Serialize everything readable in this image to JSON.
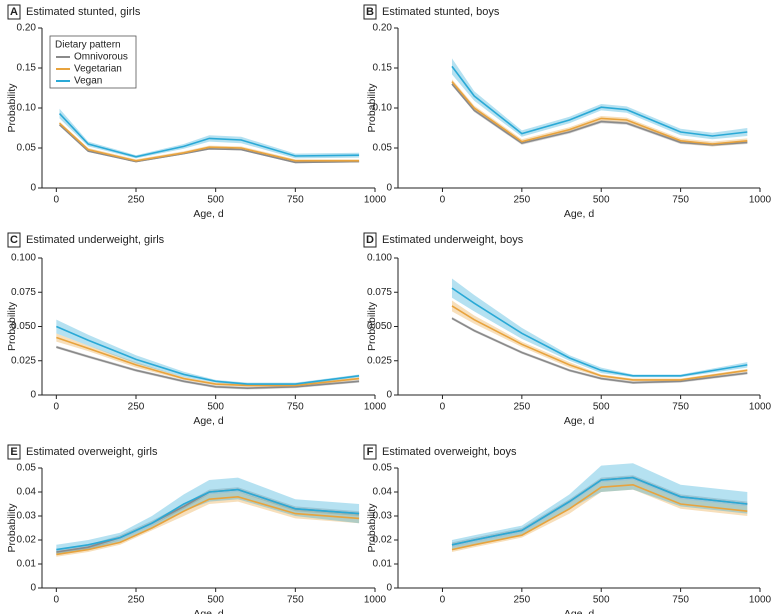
{
  "chart_data": [
    {
      "type": "line",
      "label": "A",
      "title": "Estimated stunted, girls",
      "x_label": "Age, d",
      "y_label": "Probability",
      "legend_title": "Dietary pattern",
      "legend": "upper left",
      "x": [
        10,
        100,
        250,
        400,
        480,
        580,
        750,
        950
      ],
      "xlim": [
        -45,
        1000
      ],
      "xticks": [
        0,
        250,
        500,
        750,
        1000
      ],
      "ylim": [
        0,
        0.2
      ],
      "yticks": [
        0,
        0.05,
        {
          "value": 0.1,
          "label": "0.10"
        },
        0.15,
        {
          "value": 0.2,
          "label": "0.20"
        }
      ],
      "series": [
        {
          "name": "Omnivorous",
          "color": "#8a8a8a",
          "values": [
            0.079,
            0.046,
            0.033,
            0.043,
            0.049,
            0.048,
            0.032,
            0.033
          ],
          "lower": [
            0.078,
            0.045,
            0.032,
            0.042,
            0.048,
            0.047,
            0.031,
            0.032
          ],
          "upper": [
            0.08,
            0.047,
            0.034,
            0.044,
            0.05,
            0.049,
            0.033,
            0.034
          ]
        },
        {
          "name": "Vegetarian",
          "color": "#e8a33d",
          "values": [
            0.081,
            0.048,
            0.034,
            0.044,
            0.051,
            0.05,
            0.034,
            0.034
          ],
          "lower": [
            0.079,
            0.046,
            0.032,
            0.042,
            0.049,
            0.048,
            0.032,
            0.032
          ],
          "upper": [
            0.083,
            0.05,
            0.036,
            0.046,
            0.053,
            0.052,
            0.036,
            0.036
          ]
        },
        {
          "name": "Vegan",
          "color": "#2aa9d6",
          "values": [
            0.093,
            0.055,
            0.039,
            0.052,
            0.062,
            0.06,
            0.04,
            0.041
          ],
          "lower": [
            0.087,
            0.052,
            0.037,
            0.049,
            0.058,
            0.056,
            0.037,
            0.038
          ],
          "upper": [
            0.099,
            0.058,
            0.041,
            0.055,
            0.066,
            0.064,
            0.043,
            0.044
          ]
        }
      ]
    },
    {
      "type": "line",
      "label": "B",
      "title": "Estimated stunted, boys",
      "x_label": "Age, d",
      "y_label": "Probability",
      "x": [
        30,
        100,
        250,
        400,
        500,
        580,
        750,
        850,
        960
      ],
      "xlim": [
        -140,
        1000
      ],
      "xticks": [
        0,
        250,
        500,
        750,
        1000
      ],
      "ylim": [
        0,
        0.2
      ],
      "yticks": [
        0,
        0.05,
        {
          "value": 0.1,
          "label": "0.10"
        },
        0.15,
        {
          "value": 0.2,
          "label": "0.20"
        }
      ],
      "series": [
        {
          "name": "Omnivorous",
          "color": "#8a8a8a",
          "values": [
            0.13,
            0.097,
            0.056,
            0.07,
            0.083,
            0.081,
            0.057,
            0.054,
            0.057
          ],
          "lower": [
            0.128,
            0.095,
            0.054,
            0.068,
            0.081,
            0.079,
            0.055,
            0.052,
            0.055
          ],
          "upper": [
            0.132,
            0.099,
            0.058,
            0.072,
            0.085,
            0.083,
            0.059,
            0.056,
            0.059
          ]
        },
        {
          "name": "Vegetarian",
          "color": "#e8a33d",
          "values": [
            0.133,
            0.1,
            0.058,
            0.073,
            0.087,
            0.085,
            0.059,
            0.055,
            0.059
          ],
          "lower": [
            0.13,
            0.097,
            0.055,
            0.07,
            0.084,
            0.082,
            0.056,
            0.052,
            0.056
          ],
          "upper": [
            0.136,
            0.103,
            0.061,
            0.076,
            0.09,
            0.088,
            0.062,
            0.058,
            0.062
          ]
        },
        {
          "name": "Vegan",
          "color": "#2aa9d6",
          "values": [
            0.152,
            0.115,
            0.068,
            0.085,
            0.101,
            0.098,
            0.07,
            0.065,
            0.07
          ],
          "lower": [
            0.142,
            0.109,
            0.064,
            0.081,
            0.097,
            0.094,
            0.066,
            0.061,
            0.065
          ],
          "upper": [
            0.162,
            0.121,
            0.072,
            0.089,
            0.105,
            0.102,
            0.074,
            0.069,
            0.075
          ]
        }
      ]
    },
    {
      "type": "line",
      "label": "C",
      "title": "Estimated underweight, girls",
      "x_label": "Age, d",
      "y_label": "Probability",
      "x": [
        0,
        100,
        250,
        400,
        500,
        600,
        750,
        950
      ],
      "xlim": [
        -45,
        1000
      ],
      "xticks": [
        0,
        250,
        500,
        750,
        1000
      ],
      "ylim": [
        0,
        0.1
      ],
      "yticks": [
        0,
        0.025,
        {
          "value": 0.05,
          "label": "0.050"
        },
        0.075,
        {
          "value": 0.1,
          "label": "0.100"
        }
      ],
      "series": [
        {
          "name": "Omnivorous",
          "color": "#8a8a8a",
          "values": [
            0.035,
            0.028,
            0.018,
            0.01,
            0.006,
            0.005,
            0.006,
            0.01
          ],
          "lower": [
            0.034,
            0.027,
            0.017,
            0.009,
            0.005,
            0.004,
            0.005,
            0.009
          ],
          "upper": [
            0.036,
            0.029,
            0.019,
            0.011,
            0.007,
            0.006,
            0.007,
            0.011
          ]
        },
        {
          "name": "Vegetarian",
          "color": "#e8a33d",
          "values": [
            0.042,
            0.034,
            0.022,
            0.012,
            0.008,
            0.007,
            0.007,
            0.012
          ],
          "lower": [
            0.039,
            0.032,
            0.02,
            0.011,
            0.007,
            0.006,
            0.006,
            0.011
          ],
          "upper": [
            0.045,
            0.036,
            0.024,
            0.013,
            0.009,
            0.008,
            0.008,
            0.013
          ]
        },
        {
          "name": "Vegan",
          "color": "#2aa9d6",
          "values": [
            0.05,
            0.04,
            0.026,
            0.015,
            0.01,
            0.008,
            0.008,
            0.014
          ],
          "lower": [
            0.045,
            0.036,
            0.023,
            0.013,
            0.009,
            0.007,
            0.007,
            0.013
          ],
          "upper": [
            0.055,
            0.044,
            0.029,
            0.017,
            0.011,
            0.009,
            0.009,
            0.015
          ]
        }
      ]
    },
    {
      "type": "line",
      "label": "D",
      "title": "Estimated underweight, boys",
      "x_label": "Age, d",
      "y_label": "Probability",
      "x": [
        30,
        100,
        250,
        400,
        500,
        600,
        750,
        960
      ],
      "xlim": [
        -140,
        1000
      ],
      "xticks": [
        0,
        250,
        500,
        750,
        1000
      ],
      "ylim": [
        0,
        0.1
      ],
      "yticks": [
        0,
        0.025,
        {
          "value": 0.05,
          "label": "0.050"
        },
        0.075,
        {
          "value": 0.1,
          "label": "0.100"
        }
      ],
      "series": [
        {
          "name": "Omnivorous",
          "color": "#8a8a8a",
          "values": [
            0.056,
            0.047,
            0.031,
            0.018,
            0.012,
            0.009,
            0.01,
            0.016
          ],
          "lower": [
            0.055,
            0.046,
            0.03,
            0.017,
            0.011,
            0.008,
            0.009,
            0.015
          ],
          "upper": [
            0.057,
            0.048,
            0.032,
            0.019,
            0.013,
            0.01,
            0.011,
            0.017
          ]
        },
        {
          "name": "Vegetarian",
          "color": "#e8a33d",
          "values": [
            0.065,
            0.055,
            0.037,
            0.022,
            0.014,
            0.011,
            0.011,
            0.018
          ],
          "lower": [
            0.061,
            0.052,
            0.035,
            0.02,
            0.013,
            0.01,
            0.01,
            0.017
          ],
          "upper": [
            0.069,
            0.058,
            0.039,
            0.024,
            0.015,
            0.012,
            0.012,
            0.019
          ]
        },
        {
          "name": "Vegan",
          "color": "#2aa9d6",
          "values": [
            0.078,
            0.067,
            0.045,
            0.027,
            0.018,
            0.014,
            0.014,
            0.022
          ],
          "lower": [
            0.071,
            0.061,
            0.041,
            0.025,
            0.016,
            0.013,
            0.013,
            0.02
          ],
          "upper": [
            0.085,
            0.073,
            0.049,
            0.029,
            0.02,
            0.015,
            0.015,
            0.024
          ]
        }
      ]
    },
    {
      "type": "line",
      "label": "E",
      "title": "Estimated overweight, girls",
      "x_label": "Age, d",
      "y_label": "Probability",
      "x": [
        0,
        100,
        200,
        300,
        400,
        480,
        570,
        750,
        950
      ],
      "xlim": [
        -45,
        1000
      ],
      "xticks": [
        0,
        250,
        500,
        750,
        1000
      ],
      "ylim": [
        0,
        0.05
      ],
      "yticks": [
        0,
        0.01,
        0.02,
        0.03,
        0.04,
        0.05
      ],
      "series": [
        {
          "name": "Omnivorous",
          "color": "#8a8a8a",
          "values": [
            0.015,
            0.017,
            0.021,
            0.027,
            0.034,
            0.04,
            0.041,
            0.033,
            0.031
          ],
          "lower": [
            0.014,
            0.016,
            0.02,
            0.026,
            0.033,
            0.039,
            0.04,
            0.032,
            0.03
          ],
          "upper": [
            0.016,
            0.018,
            0.022,
            0.028,
            0.035,
            0.041,
            0.042,
            0.034,
            0.032
          ]
        },
        {
          "name": "Vegetarian",
          "color": "#e8a33d",
          "values": [
            0.014,
            0.016,
            0.019,
            0.025,
            0.032,
            0.037,
            0.038,
            0.031,
            0.029
          ],
          "lower": [
            0.013,
            0.015,
            0.018,
            0.024,
            0.03,
            0.035,
            0.036,
            0.029,
            0.027
          ],
          "upper": [
            0.015,
            0.017,
            0.02,
            0.026,
            0.034,
            0.039,
            0.04,
            0.033,
            0.031
          ]
        },
        {
          "name": "Vegan",
          "color": "#2aa9d6",
          "values": [
            0.016,
            0.018,
            0.021,
            0.027,
            0.035,
            0.04,
            0.041,
            0.033,
            0.031
          ],
          "lower": [
            0.014,
            0.016,
            0.019,
            0.025,
            0.032,
            0.036,
            0.037,
            0.03,
            0.027
          ],
          "upper": [
            0.018,
            0.02,
            0.023,
            0.03,
            0.039,
            0.045,
            0.046,
            0.037,
            0.035
          ]
        }
      ]
    },
    {
      "type": "line",
      "label": "F",
      "title": "Estimated overweight, boys",
      "x_label": "Age, d",
      "y_label": "Probability",
      "x": [
        30,
        100,
        250,
        400,
        500,
        600,
        750,
        960
      ],
      "xlim": [
        -140,
        1000
      ],
      "xticks": [
        0,
        250,
        500,
        750,
        1000
      ],
      "ylim": [
        0,
        0.05
      ],
      "yticks": [
        0,
        0.01,
        0.02,
        0.03,
        0.04,
        0.05
      ],
      "series": [
        {
          "name": "Omnivorous",
          "color": "#8a8a8a",
          "values": [
            0.018,
            0.02,
            0.024,
            0.036,
            0.045,
            0.046,
            0.038,
            0.035
          ],
          "lower": [
            0.017,
            0.019,
            0.023,
            0.035,
            0.044,
            0.045,
            0.037,
            0.034
          ],
          "upper": [
            0.019,
            0.021,
            0.025,
            0.037,
            0.046,
            0.047,
            0.039,
            0.036
          ]
        },
        {
          "name": "Vegetarian",
          "color": "#e8a33d",
          "values": [
            0.016,
            0.018,
            0.022,
            0.033,
            0.042,
            0.043,
            0.035,
            0.032
          ],
          "lower": [
            0.015,
            0.017,
            0.021,
            0.031,
            0.04,
            0.041,
            0.033,
            0.03
          ],
          "upper": [
            0.017,
            0.019,
            0.023,
            0.035,
            0.044,
            0.045,
            0.037,
            0.034
          ]
        },
        {
          "name": "Vegan",
          "color": "#2aa9d6",
          "values": [
            0.018,
            0.02,
            0.024,
            0.036,
            0.045,
            0.046,
            0.038,
            0.035
          ],
          "lower": [
            0.016,
            0.018,
            0.022,
            0.033,
            0.04,
            0.041,
            0.034,
            0.031
          ],
          "upper": [
            0.02,
            0.022,
            0.026,
            0.039,
            0.051,
            0.052,
            0.043,
            0.04
          ]
        }
      ]
    }
  ]
}
